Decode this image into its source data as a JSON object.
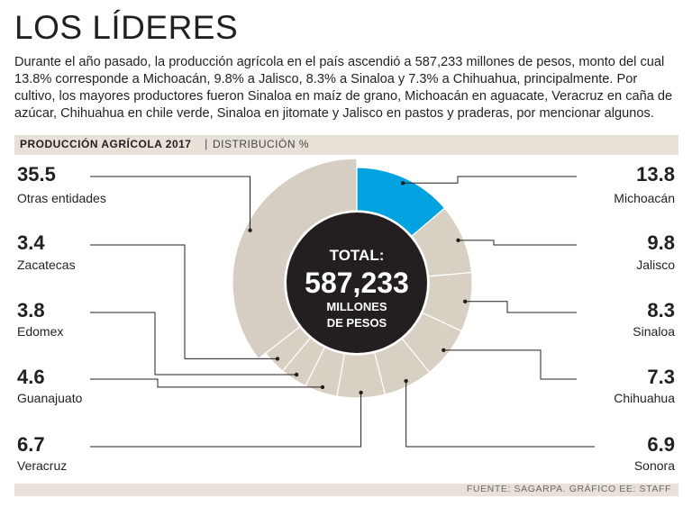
{
  "header": {
    "title": "LOS LÍDERES",
    "description": "Durante el año pasado, la producción agrícola en el país ascendió a 587,233 millones de pesos, monto del cual 13.8% corresponde a Michoacán, 9.8% a Jalisco, 8.3% a Sinaloa y 7.3% a Chihuahua, principalmente. Por cultivo, los mayores productores fueron Sinaloa en maíz de grano, Michoacán en aguacate, Veracruz en caña de azúcar, Chihuahua en chile verde, Sinaloa en jitomate y Jalisco en pastos y praderas, por mencionar algunos."
  },
  "band": {
    "title": "PRODUCCIÓN AGRÍCOLA 2017",
    "separator": "|",
    "subtitle": "DISTRIBUCIÓN %"
  },
  "center": {
    "line1": "TOTAL:",
    "line2": "587,233",
    "line3": "MILLONES",
    "line4": "DE PESOS"
  },
  "footer": {
    "source": "FUENTE: SAGARPA. GRÁFICO EE: STAFF"
  },
  "colors": {
    "highlight": "#00a3e0",
    "ring": "#d9d0c4",
    "outer": "#d6cec3",
    "center": "#231f20",
    "band": "#e8e1d8"
  },
  "chart_data": {
    "type": "pie",
    "title": "PRODUCCIÓN AGRÍCOLA 2017",
    "subtitle": "DISTRIBUCIÓN %",
    "total_label": "587,233",
    "slices": [
      {
        "name": "Michoacán",
        "value": 13.8,
        "value_label": "13.8",
        "highlight": true
      },
      {
        "name": "Jalisco",
        "value": 9.8,
        "value_label": "9.8"
      },
      {
        "name": "Sinaloa",
        "value": 8.3,
        "value_label": "8.3"
      },
      {
        "name": "Chihuahua",
        "value": 7.3,
        "value_label": "7.3"
      },
      {
        "name": "Sonora",
        "value": 6.9,
        "value_label": "6.9"
      },
      {
        "name": "Veracruz",
        "value": 6.7,
        "value_label": "6.7"
      },
      {
        "name": "Guanajuato",
        "value": 4.6,
        "value_label": "4.6"
      },
      {
        "name": "Edomex",
        "value": 3.8,
        "value_label": "3.8"
      },
      {
        "name": "Zacatecas",
        "value": 3.4,
        "value_label": "3.4"
      },
      {
        "name": "Otras entidades",
        "value": 35.5,
        "value_label": "35.5",
        "outer": true
      }
    ]
  }
}
